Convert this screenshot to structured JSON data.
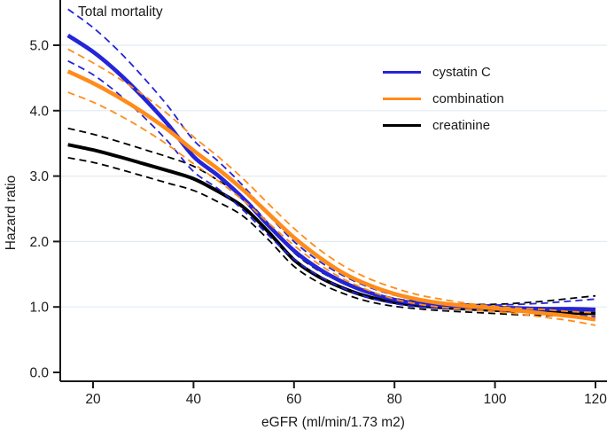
{
  "figure_title": "Total mortality",
  "axes": {
    "x_label": "eGFR (ml/min/1.73 m2)",
    "y_label": "Hazard ratio",
    "x_tick_labels": [
      "20",
      "40",
      "60",
      "80",
      "100",
      "120"
    ],
    "y_tick_labels": [
      "0.0",
      "1.0",
      "2.0",
      "3.0",
      "4.0",
      "5.0"
    ]
  },
  "legend": {
    "entries": [
      {
        "label": "cystatin C",
        "color": "#2424d8"
      },
      {
        "label": "combination",
        "color": "#ff8c1a"
      },
      {
        "label": "creatinine",
        "color": "#000000"
      }
    ]
  },
  "colors": {
    "cystatin_c": "#2424d8",
    "combination": "#ff8c1a",
    "creatinine": "#000000",
    "gridline": "#e2ebf2",
    "axis": "#1a1a1a"
  },
  "chart_data": {
    "type": "line",
    "title": "Total mortality",
    "xlabel": "eGFR (ml/min/1.73 m2)",
    "ylabel": "Hazard ratio",
    "xlim": [
      13.5,
      122.5
    ],
    "ylim": [
      0,
      5.69
    ],
    "grid": "horizontal-light",
    "legend_position": "upper right",
    "x_ticks": [
      20,
      40,
      60,
      80,
      100,
      120
    ],
    "y_ticks": [
      0,
      1,
      2,
      3,
      4,
      5
    ],
    "x": [
      15,
      20,
      25,
      30,
      35,
      40,
      45,
      50,
      55,
      60,
      65,
      70,
      75,
      80,
      85,
      90,
      95,
      100,
      105,
      110,
      115,
      120
    ],
    "series": [
      {
        "name": "creatinine",
        "color": "#000000",
        "line": "solid",
        "width": 4.0,
        "values": [
          3.48,
          3.4,
          3.3,
          3.19,
          3.08,
          2.96,
          2.76,
          2.52,
          2.14,
          1.72,
          1.46,
          1.28,
          1.15,
          1.07,
          1.02,
          0.99,
          0.97,
          0.95,
          0.94,
          0.92,
          0.91,
          0.9
        ]
      },
      {
        "name": "creatinine CI upper",
        "color": "#000000",
        "line": "dashed",
        "width": 1.8,
        "values": [
          3.73,
          3.64,
          3.53,
          3.41,
          3.29,
          3.15,
          2.93,
          2.67,
          2.27,
          1.83,
          1.55,
          1.36,
          1.23,
          1.13,
          1.08,
          1.05,
          1.04,
          1.04,
          1.06,
          1.09,
          1.13,
          1.17
        ]
      },
      {
        "name": "creatinine CI lower",
        "color": "#000000",
        "line": "dashed",
        "width": 1.8,
        "values": [
          3.28,
          3.21,
          3.11,
          3.0,
          2.89,
          2.78,
          2.6,
          2.38,
          2.02,
          1.62,
          1.37,
          1.2,
          1.08,
          1.01,
          0.97,
          0.94,
          0.92,
          0.9,
          0.88,
          0.87,
          0.86,
          0.85
        ]
      },
      {
        "name": "cystatin C",
        "color": "#2424d8",
        "line": "solid",
        "width": 4.6,
        "values": [
          5.15,
          4.9,
          4.58,
          4.2,
          3.78,
          3.3,
          3.0,
          2.65,
          2.24,
          1.86,
          1.58,
          1.37,
          1.22,
          1.11,
          1.05,
          1.02,
          1.0,
          0.99,
          0.98,
          0.97,
          0.97,
          0.96
        ]
      },
      {
        "name": "cystatin C CI upper",
        "color": "#2424d8",
        "line": "dashed",
        "width": 1.8,
        "values": [
          5.55,
          5.27,
          4.92,
          4.51,
          4.06,
          3.55,
          3.22,
          2.84,
          2.4,
          2.0,
          1.7,
          1.47,
          1.3,
          1.18,
          1.1,
          1.06,
          1.04,
          1.03,
          1.04,
          1.06,
          1.09,
          1.12
        ]
      },
      {
        "name": "cystatin C CI lower",
        "color": "#2424d8",
        "line": "dashed",
        "width": 1.8,
        "values": [
          4.76,
          4.55,
          4.26,
          3.91,
          3.52,
          3.07,
          2.8,
          2.47,
          2.09,
          1.73,
          1.47,
          1.28,
          1.14,
          1.05,
          1.0,
          0.98,
          0.96,
          0.95,
          0.93,
          0.9,
          0.88,
          0.85
        ]
      },
      {
        "name": "combination",
        "color": "#ff8c1a",
        "line": "solid",
        "width": 4.6,
        "values": [
          4.6,
          4.42,
          4.21,
          3.97,
          3.7,
          3.39,
          3.1,
          2.78,
          2.42,
          2.06,
          1.76,
          1.51,
          1.33,
          1.2,
          1.11,
          1.05,
          1.01,
          0.98,
          0.94,
          0.9,
          0.86,
          0.81
        ]
      },
      {
        "name": "combination CI upper",
        "color": "#ff8c1a",
        "line": "dashed",
        "width": 1.8,
        "values": [
          4.94,
          4.73,
          4.5,
          4.24,
          3.94,
          3.6,
          3.29,
          2.95,
          2.57,
          2.2,
          1.88,
          1.62,
          1.43,
          1.29,
          1.18,
          1.11,
          1.05,
          1.01,
          0.98,
          0.96,
          0.93,
          0.91
        ]
      },
      {
        "name": "combination CI lower",
        "color": "#ff8c1a",
        "line": "dashed",
        "width": 1.8,
        "values": [
          4.28,
          4.13,
          3.94,
          3.72,
          3.47,
          3.19,
          2.92,
          2.62,
          2.28,
          1.94,
          1.65,
          1.42,
          1.25,
          1.12,
          1.04,
          0.99,
          0.96,
          0.93,
          0.89,
          0.84,
          0.79,
          0.72
        ]
      }
    ]
  }
}
